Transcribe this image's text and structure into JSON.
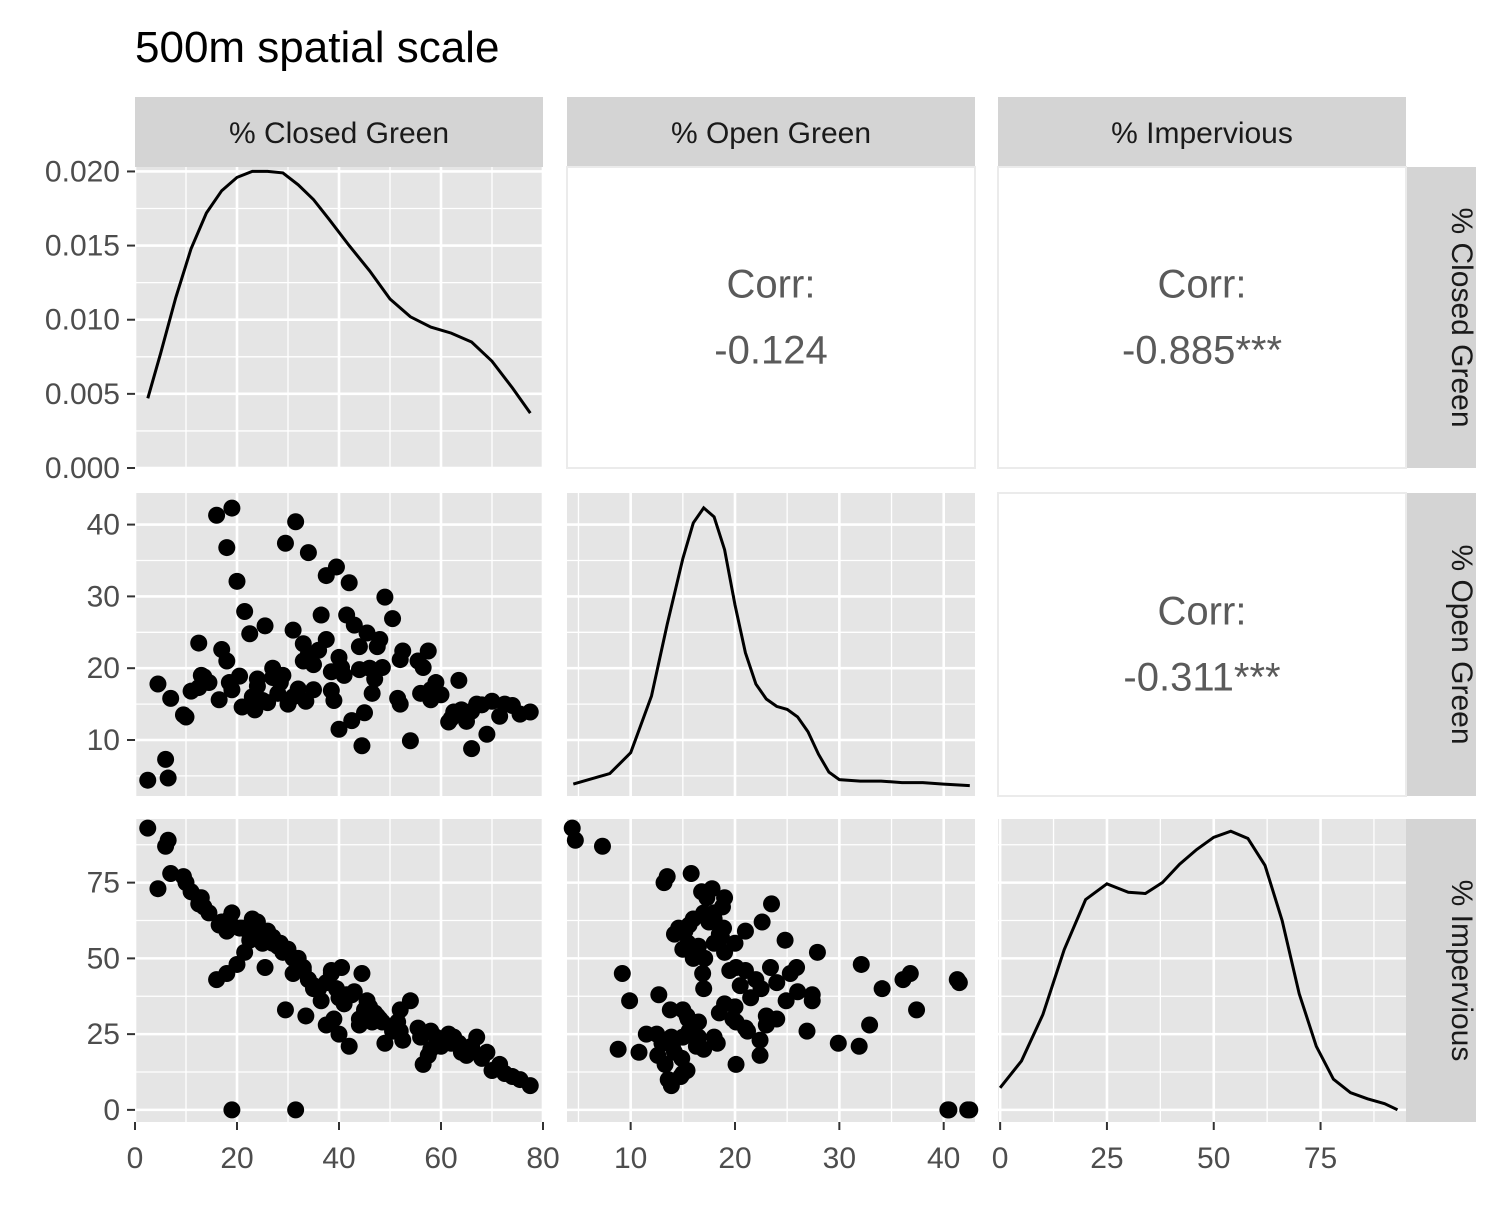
{
  "chart_data": {
    "type": "scatter",
    "subtype": "pairs-matrix",
    "title": "500m spatial scale",
    "variables": [
      "% Closed Green",
      "% Open Green",
      "% Impervious"
    ],
    "grid": true,
    "panel_background": "#e5e5e5",
    "strip_background": "#d4d4d4",
    "point_color": "#000000",
    "corr_text_color": "#5a5a5a",
    "correlations": [
      {
        "row": 0,
        "col": 1,
        "label": "Corr:",
        "value": "-0.124"
      },
      {
        "row": 0,
        "col": 2,
        "label": "Corr:",
        "value": "-0.885***"
      },
      {
        "row": 1,
        "col": 2,
        "label": "Corr:",
        "value": "-0.311***"
      }
    ],
    "axes": {
      "x": [
        {
          "range": [
            0,
            80
          ],
          "ticks": [
            0,
            20,
            40,
            60,
            80
          ],
          "tick_labels": [
            "0",
            "20",
            "40",
            "60",
            "80"
          ]
        },
        {
          "range": [
            3.9,
            43
          ],
          "ticks": [
            10,
            20,
            30,
            40
          ],
          "tick_labels": [
            "10",
            "20",
            "30",
            "40"
          ]
        },
        {
          "range": [
            -0.5,
            95
          ],
          "ticks": [
            0,
            25,
            50,
            75
          ],
          "tick_labels": [
            "0",
            "25",
            "50",
            "75"
          ]
        }
      ],
      "y": [
        {
          "range": [
            0,
            0.0203
          ],
          "ticks": [
            0,
            0.005,
            0.01,
            0.015,
            0.02
          ],
          "tick_labels": [
            "0.000",
            "0.005",
            "0.010",
            "0.015",
            "0.020"
          ]
        },
        {
          "range": [
            2.2,
            44.4
          ],
          "ticks": [
            10,
            20,
            30,
            40
          ],
          "tick_labels": [
            "10",
            "20",
            "30",
            "40"
          ]
        },
        {
          "range": [
            -4,
            96
          ],
          "ticks": [
            0,
            25,
            50,
            75
          ],
          "tick_labels": [
            "0",
            "25",
            "50",
            "75"
          ]
        }
      ]
    },
    "density_y_range": [
      0,
      0.0203
    ],
    "densities": [
      {
        "variable": "% Closed Green",
        "x": [
          2.5,
          5,
          8,
          11,
          14,
          17,
          20,
          23,
          26,
          29,
          32,
          35,
          38,
          42,
          46,
          50,
          54,
          58,
          62,
          66,
          70,
          74,
          77.5
        ],
        "y": [
          0.0047,
          0.0077,
          0.0115,
          0.0148,
          0.0172,
          0.0187,
          0.0196,
          0.02,
          0.02,
          0.0199,
          0.0191,
          0.0181,
          0.0168,
          0.015,
          0.0133,
          0.0114,
          0.0102,
          0.0095,
          0.0091,
          0.0085,
          0.0072,
          0.0054,
          0.0037
        ]
      },
      {
        "variable": "% Open Green",
        "x": [
          4.5,
          6,
          8,
          10,
          12,
          13.5,
          15,
          16,
          17,
          18,
          19,
          20,
          21,
          22,
          23,
          24,
          25,
          26,
          27,
          28,
          29,
          30,
          32,
          34,
          36,
          38,
          40,
          42.5
        ],
        "y": [
          0.0008,
          0.0011,
          0.0015,
          0.0029,
          0.0067,
          0.0115,
          0.0159,
          0.0183,
          0.0193,
          0.0187,
          0.0165,
          0.0128,
          0.0096,
          0.0075,
          0.0065,
          0.006,
          0.0058,
          0.0053,
          0.0043,
          0.0028,
          0.0016,
          0.0011,
          0.001,
          0.001,
          0.0009,
          0.0009,
          0.0008,
          0.0007
        ]
      },
      {
        "variable": "% Impervious",
        "x": [
          0,
          5,
          10,
          15,
          20,
          25,
          30,
          34,
          38,
          42,
          46,
          50,
          54,
          58,
          62,
          66,
          70,
          74,
          78,
          82,
          86,
          90,
          93
        ],
        "y": [
          0.0028,
          0.005,
          0.0088,
          0.0141,
          0.0182,
          0.0195,
          0.0188,
          0.0187,
          0.0196,
          0.0211,
          0.0223,
          0.0233,
          0.0238,
          0.0232,
          0.021,
          0.0165,
          0.0105,
          0.0062,
          0.0035,
          0.0024,
          0.0019,
          0.0015,
          0.001
        ]
      }
    ],
    "density_y_ranges": [
      [
        0,
        0.0203
      ],
      [
        0,
        0.0203
      ],
      [
        0,
        0.0248
      ]
    ],
    "points": [
      [
        2.5,
        4.4,
        93
      ],
      [
        4.5,
        17.8,
        73
      ],
      [
        6,
        7.3,
        87
      ],
      [
        6.5,
        4.7,
        89
      ],
      [
        7,
        15.8,
        78
      ],
      [
        9.5,
        13.5,
        77
      ],
      [
        10,
        13.2,
        75
      ],
      [
        11,
        16.8,
        72
      ],
      [
        12.5,
        23.5,
        68
      ],
      [
        12.5,
        17.3,
        70
      ],
      [
        13.5,
        18.8,
        67
      ],
      [
        14.5,
        18.0,
        65
      ],
      [
        16,
        41.3,
        43
      ],
      [
        17,
        22.6,
        62
      ],
      [
        16.5,
        15.6,
        61
      ],
      [
        18,
        36.8,
        45
      ],
      [
        19,
        42.3,
        0
      ],
      [
        20,
        32.1,
        48
      ],
      [
        18.5,
        18.0,
        63
      ],
      [
        20.5,
        18.9,
        60
      ],
      [
        21.5,
        27.9,
        52
      ],
      [
        22.5,
        24.8,
        56
      ],
      [
        21,
        14.6,
        60
      ],
      [
        23.5,
        14.2,
        58
      ],
      [
        24,
        17.5,
        62
      ],
      [
        25.5,
        25.9,
        47
      ],
      [
        26,
        15.2,
        59
      ],
      [
        27,
        18.7,
        57
      ],
      [
        28,
        16.5,
        54
      ],
      [
        28.5,
        18.0,
        55
      ],
      [
        29.5,
        37.4,
        33
      ],
      [
        30,
        15.0,
        53
      ],
      [
        31,
        25.3,
        45
      ],
      [
        31.5,
        40.4,
        0
      ],
      [
        32,
        17.1,
        50
      ],
      [
        33,
        23.4,
        47
      ],
      [
        33.5,
        15.4,
        31
      ],
      [
        34,
        36.1,
        43
      ],
      [
        35,
        20.5,
        41
      ],
      [
        36.5,
        27.4,
        36
      ],
      [
        37.5,
        24.0,
        42
      ],
      [
        37.5,
        32.9,
        28
      ],
      [
        38.5,
        16.9,
        45
      ],
      [
        39.5,
        34.1,
        40
      ],
      [
        40,
        11.5,
        25
      ],
      [
        40.5,
        20.1,
        47
      ],
      [
        41.5,
        27.4,
        38
      ],
      [
        42,
        31.9,
        21
      ],
      [
        42.5,
        12.7,
        38
      ],
      [
        43,
        26.0,
        39
      ],
      [
        44,
        19.8,
        30
      ],
      [
        44.5,
        9.2,
        45
      ],
      [
        45,
        13.8,
        33
      ],
      [
        45.5,
        24.9,
        36
      ],
      [
        46.5,
        16.5,
        29
      ],
      [
        47.5,
        23.0,
        31
      ],
      [
        48.5,
        20.1,
        29
      ],
      [
        49,
        29.9,
        22
      ],
      [
        50.5,
        26.9,
        26
      ],
      [
        51.5,
        15.8,
        29
      ],
      [
        52,
        21.2,
        26
      ],
      [
        52.5,
        22.4,
        23
      ],
      [
        54,
        9.9,
        36
      ],
      [
        56.5,
        20.1,
        15
      ],
      [
        57.5,
        22.4,
        18
      ],
      [
        58,
        15.6,
        26
      ],
      [
        59,
        18.0,
        24
      ],
      [
        60,
        16.3,
        21
      ],
      [
        61.5,
        12.5,
        25
      ],
      [
        62.5,
        13.9,
        24
      ],
      [
        63.5,
        18.3,
        22
      ],
      [
        64,
        14.2,
        19
      ],
      [
        65,
        12.6,
        18
      ],
      [
        66,
        8.8,
        20
      ],
      [
        67,
        15.0,
        24
      ],
      [
        68,
        14.9,
        17
      ],
      [
        69,
        10.8,
        19
      ],
      [
        70,
        15.4,
        13
      ],
      [
        71.5,
        13.3,
        15
      ],
      [
        72.5,
        15.0,
        12
      ],
      [
        74,
        14.8,
        11
      ],
      [
        75.5,
        13.6,
        10
      ],
      [
        77.5,
        13.9,
        8
      ],
      [
        38.5,
        19.5,
        46
      ],
      [
        36,
        22.5,
        40
      ],
      [
        25,
        15.5,
        55
      ],
      [
        19,
        17.0,
        65
      ],
      [
        47,
        18.5,
        32
      ],
      [
        55.5,
        21.0,
        27
      ],
      [
        29,
        19.0,
        52
      ],
      [
        34,
        22.0,
        43
      ],
      [
        41,
        19.0,
        35
      ],
      [
        48,
        24.0,
        30
      ],
      [
        23,
        16.0,
        63
      ],
      [
        35,
        17.0,
        40
      ],
      [
        52,
        15.0,
        33
      ],
      [
        62,
        13.0,
        22
      ],
      [
        27,
        20.0,
        55
      ],
      [
        13,
        19.0,
        70
      ],
      [
        44,
        23.0,
        28
      ],
      [
        39,
        15.5,
        30
      ],
      [
        58,
        17.0,
        20
      ],
      [
        31,
        16.0,
        50
      ],
      [
        18,
        21.0,
        59
      ],
      [
        24,
        18.5,
        58
      ],
      [
        33,
        21.0,
        46
      ],
      [
        40,
        21.5,
        37
      ],
      [
        46,
        20.0,
        34
      ],
      [
        56,
        16.5,
        24
      ],
      [
        66,
        14.0,
        21
      ]
    ],
    "extra_points_col1_vs_imp": [
      [
        40.5,
        0
      ],
      [
        42.5,
        0
      ],
      [
        41.5,
        42
      ]
    ]
  }
}
